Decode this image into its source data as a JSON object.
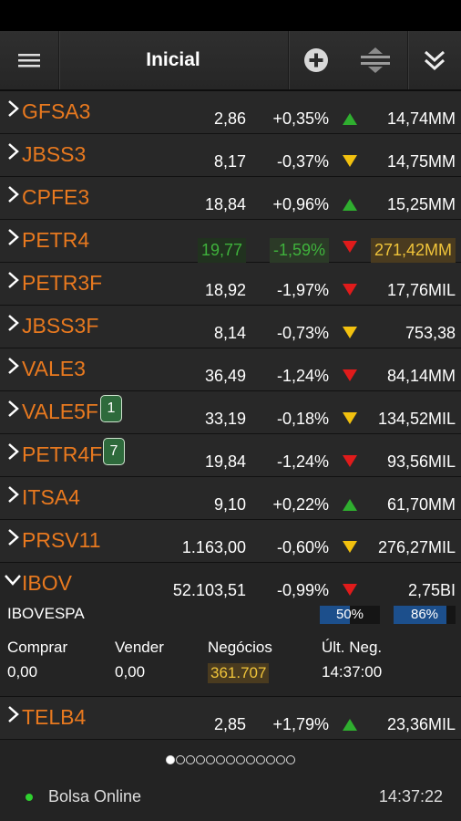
{
  "header": {
    "title": "Inicial"
  },
  "rows": [
    {
      "symbol": "GFSA3",
      "price": "2,86",
      "change": "+0,35%",
      "direction": "up",
      "volume": "14,74MM"
    },
    {
      "symbol": "JBSS3",
      "price": "8,17",
      "change": "-0,37%",
      "direction": "down-yellow",
      "volume": "14,75MM"
    },
    {
      "symbol": "CPFE3",
      "price": "18,84",
      "change": "+0,96%",
      "direction": "up",
      "volume": "15,25MM"
    },
    {
      "symbol": "PETR4",
      "price": "19,77",
      "change": "-1,59%",
      "direction": "down-red",
      "volume": "271,42MM"
    },
    {
      "symbol": "PETR3F",
      "price": "18,92",
      "change": "-1,97%",
      "direction": "down-red",
      "volume": "17,76MIL"
    },
    {
      "symbol": "JBSS3F",
      "price": "8,14",
      "change": "-0,73%",
      "direction": "down-yellow",
      "volume": "753,38"
    },
    {
      "symbol": "VALE3",
      "price": "36,49",
      "change": "-1,24%",
      "direction": "down-red",
      "volume": "84,14MM"
    },
    {
      "symbol": "VALE5F",
      "price": "33,19",
      "change": "-0,18%",
      "direction": "down-yellow",
      "volume": "134,52MIL",
      "badge": "1"
    },
    {
      "symbol": "PETR4F",
      "price": "19,84",
      "change": "-1,24%",
      "direction": "down-red",
      "volume": "93,56MIL",
      "badge": "7"
    },
    {
      "symbol": "ITSA4",
      "price": "9,10",
      "change": "+0,22%",
      "direction": "up",
      "volume": "61,70MM"
    },
    {
      "symbol": "PRSV11",
      "price": "1.163,00",
      "change": "-0,60%",
      "direction": "down-yellow",
      "volume": "276,27MIL"
    }
  ],
  "expanded": {
    "symbol": "IBOV",
    "price": "52.103,51",
    "change": "-0,99%",
    "direction": "down-red",
    "volume": "2,75BI",
    "name": "IBOVESPA",
    "bar1": {
      "label": "50%",
      "fraction": 0.5
    },
    "bar2": {
      "label": "86%",
      "fraction": 0.86
    },
    "labels": {
      "buy": "Comprar",
      "sell": "Vender",
      "deals": "Negócios",
      "last": "Últ. Neg."
    },
    "values": {
      "buy": "0,00",
      "sell": "0,00",
      "deals": "361.707",
      "last": "14:37:00"
    }
  },
  "last_row": {
    "symbol": "TELB4",
    "price": "2,85",
    "change": "+1,79%",
    "direction": "up",
    "volume": "23,36MIL"
  },
  "pager": {
    "total": 13,
    "active": 0
  },
  "footer": {
    "status": "Bolsa Online",
    "time": "14:37:22"
  },
  "colors": {
    "symbol": "#e8791f",
    "up": "#2fae2f",
    "down_red": "#e01b1b",
    "down_yellow": "#f2c10f",
    "online": "#2fd12f"
  }
}
